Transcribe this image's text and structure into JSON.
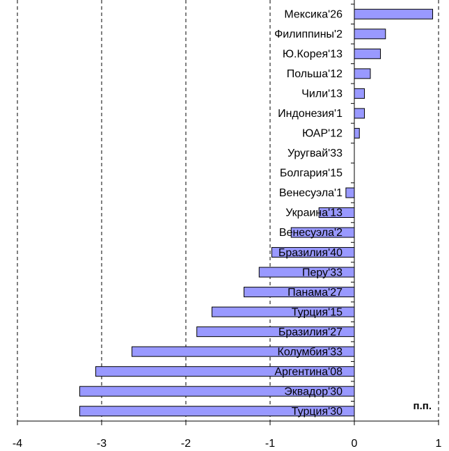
{
  "chart_data": {
    "type": "barh",
    "categories": [
      "Мексика'26",
      "Филиппины'2",
      "Ю.Корея'13",
      "Польша'12",
      "Чили'13",
      "Индонезия'1",
      "ЮАР'12",
      "Уругвай'33",
      "Болгария'15",
      "Венесуэла'1",
      "Украина'13",
      "Венесуэла'2",
      "Бразилия'40",
      "Перу'33",
      "Панама'27",
      "Турция'15",
      "Бразилия'27",
      "Колумбия'33",
      "Аргентина'08",
      "Эквадор'30",
      "Турция'30"
    ],
    "values": [
      0.93,
      0.37,
      0.31,
      0.19,
      0.12,
      0.12,
      0.06,
      0,
      0,
      -0.1,
      -0.42,
      -0.75,
      -0.98,
      -1.13,
      -1.31,
      -1.69,
      -1.87,
      -2.64,
      -3.07,
      -3.26,
      -3.26
    ],
    "color": "#9999ff",
    "xlim": [
      -4,
      1
    ],
    "xticks": [
      -4,
      -3,
      -2,
      -1,
      0,
      1
    ],
    "grid": true,
    "annotation": "п.п."
  }
}
